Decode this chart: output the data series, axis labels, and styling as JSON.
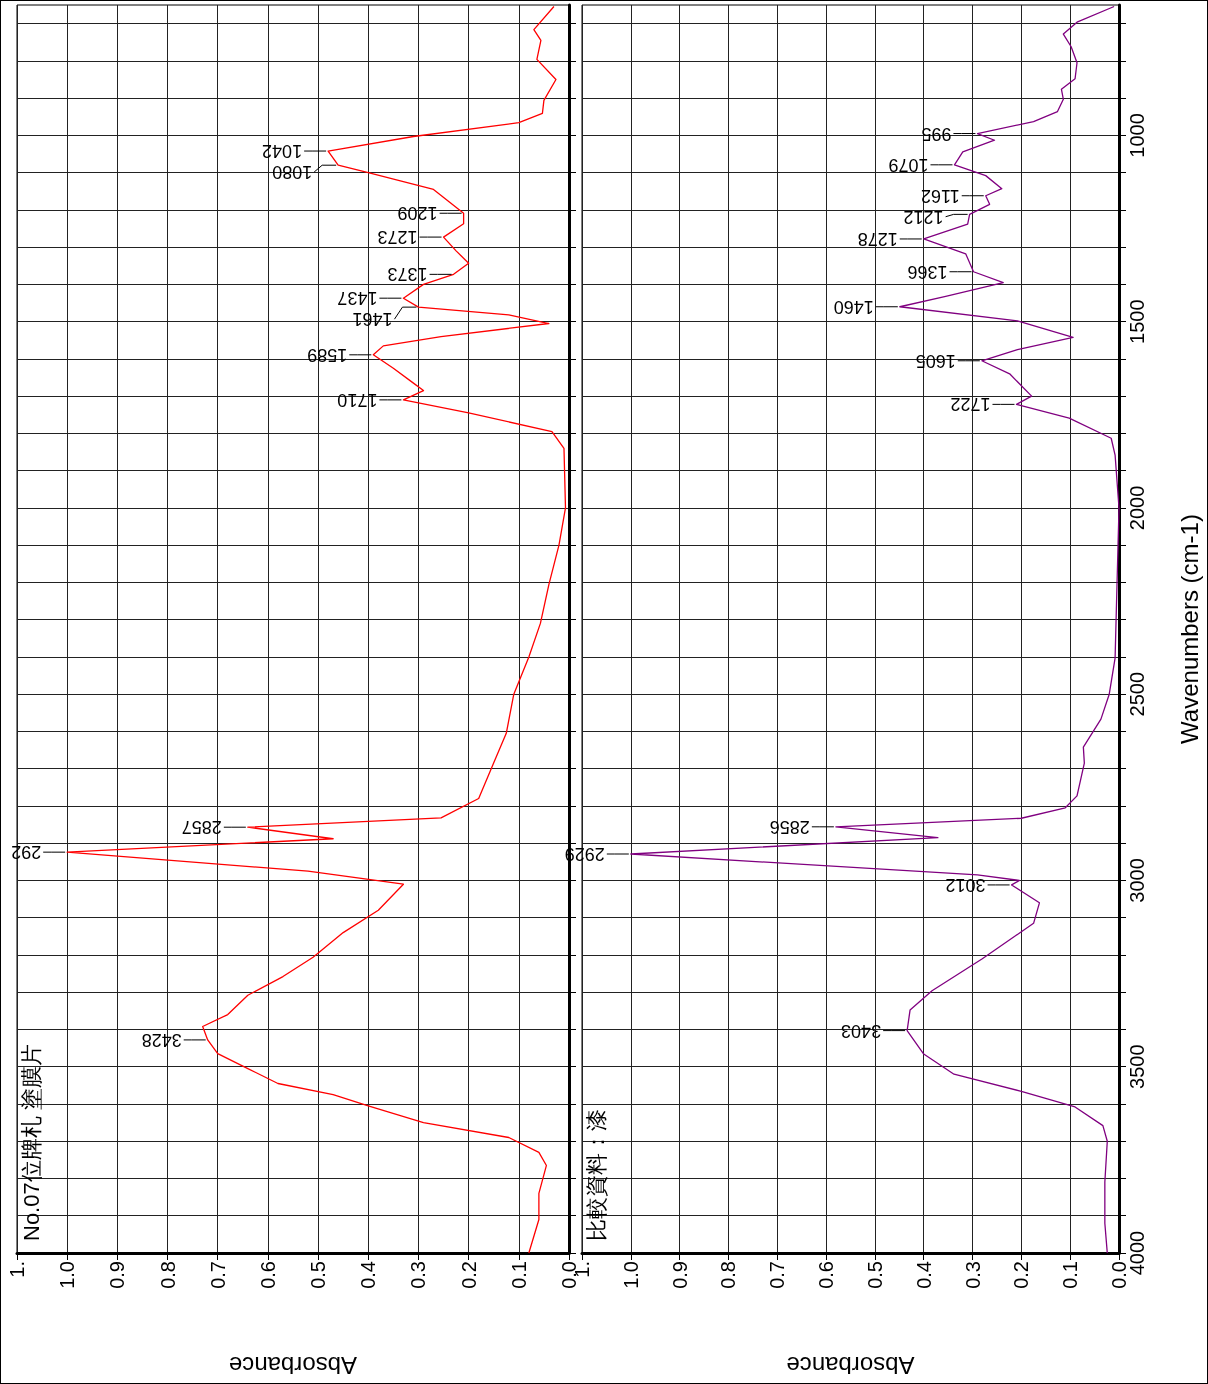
{
  "chart_data": [
    {
      "type": "line",
      "title": "No.07位牌札 塗膜片",
      "xlabel": "Absorbance",
      "xlim": [
        1.1,
        0
      ],
      "xticks": [
        {
          "value": 1.1,
          "label": "1."
        },
        {
          "value": 1,
          "label": "1.0"
        },
        0.9,
        0.8,
        0.7,
        0.6,
        0.5,
        0.4,
        0.3,
        0.2,
        0.1,
        {
          "value": 0,
          "label": "0.0"
        }
      ],
      "ylim": [
        4000,
        650
      ],
      "yticks": [
        {
          "value": 700,
          "label": null
        },
        {
          "value": 800,
          "label": null
        },
        {
          "value": 900,
          "label": null
        },
        {
          "value": 1000,
          "label": null
        },
        {
          "value": 1100,
          "label": null
        },
        {
          "value": 1200,
          "label": null
        },
        {
          "value": 1300,
          "label": null
        },
        {
          "value": 1400,
          "label": null
        },
        {
          "value": 1500,
          "label": null
        },
        {
          "value": 1600,
          "label": null
        },
        {
          "value": 1700,
          "label": null
        },
        {
          "value": 1800,
          "label": null
        },
        {
          "value": 1900,
          "label": null
        },
        {
          "value": 2000,
          "label": null
        },
        {
          "value": 2100,
          "label": null
        },
        {
          "value": 2200,
          "label": null
        },
        {
          "value": 2300,
          "label": null
        },
        {
          "value": 2400,
          "label": null
        },
        {
          "value": 2500,
          "label": null
        },
        {
          "value": 2600,
          "label": null
        },
        {
          "value": 2700,
          "label": null
        },
        {
          "value": 2800,
          "label": null
        },
        {
          "value": 2900,
          "label": null
        },
        {
          "value": 3000,
          "label": null
        },
        {
          "value": 3100,
          "label": null
        },
        {
          "value": 3200,
          "label": null
        },
        {
          "value": 3300,
          "label": null
        },
        {
          "value": 3400,
          "label": null
        },
        {
          "value": 3500,
          "label": null
        },
        {
          "value": 3600,
          "label": null
        },
        {
          "value": 3700,
          "label": null
        },
        {
          "value": 3800,
          "label": null
        },
        {
          "value": 3900,
          "label": null
        },
        {
          "value": 4000,
          "label": null
        }
      ],
      "tick_labels": "x",
      "grid": true,
      "series": [
        {
          "color": "#ff0000",
          "x": [
            0.08,
            0.06,
            0.06,
            0.045,
            0.06,
            0.12,
            0.29,
            0.4,
            0.47,
            0.58,
            0.64,
            0.7,
            0.72,
            0.73,
            0.68,
            0.64,
            0.57,
            0.51,
            0.45,
            0.38,
            0.33,
            0.52,
            1.0,
            0.47,
            0.64,
            0.255,
            0.18,
            0.155,
            0.125,
            0.11,
            0.08,
            0.057,
            0.04,
            0.02,
            0.007,
            0.01,
            0.034,
            0.2,
            0.33,
            0.29,
            0.31,
            0.35,
            0.39,
            0.37,
            0.255,
            0.04,
            0.12,
            0.3,
            0.33,
            0.29,
            0.23,
            0.2,
            0.225,
            0.25,
            0.21,
            0.21,
            0.27,
            0.4,
            0.46,
            0.48,
            0.31,
            0.1,
            0.053,
            0.05,
            0.026,
            0.064,
            0.056,
            0.07,
            0.03
          ],
          "values": [
            4000,
            3910,
            3840,
            3765,
            3730,
            3690,
            3650,
            3605,
            3575,
            3545,
            3505,
            3465,
            3428,
            3392,
            3360,
            3308,
            3258,
            3206,
            3140,
            3080,
            3010,
            2975,
            2924,
            2888,
            2857,
            2832,
            2780,
            2700,
            2605,
            2500,
            2400,
            2310,
            2205,
            2100,
            2000,
            1840,
            1795,
            1745,
            1710,
            1685,
            1665,
            1625,
            1589,
            1565,
            1540,
            1505,
            1482,
            1461,
            1437,
            1400,
            1373,
            1343,
            1310,
            1273,
            1237,
            1209,
            1145,
            1100,
            1080,
            1042,
            1003,
            966,
            941,
            906,
            850,
            796,
            745,
            716,
            654
          ]
        }
      ],
      "annotations": [
        {
          "text": "3428",
          "x": 0.72,
          "y": 3428
        },
        {
          "text": "292",
          "x": 1.0,
          "y": 2924
        },
        {
          "text": "2857",
          "x": 0.64,
          "y": 2857
        },
        {
          "text": "1710",
          "x": 0.33,
          "y": 1710
        },
        {
          "text": "1589",
          "x": 0.39,
          "y": 1589
        },
        {
          "text": "1461",
          "x": 0.3,
          "y": 1461
        },
        {
          "text": "1437",
          "x": 0.33,
          "y": 1437
        },
        {
          "text": "1373",
          "x": 0.23,
          "y": 1373
        },
        {
          "text": "1273",
          "x": 0.25,
          "y": 1273
        },
        {
          "text": "1209",
          "x": 0.21,
          "y": 1209
        },
        {
          "text": "1080",
          "x": 0.46,
          "y": 1080
        },
        {
          "text": "1042",
          "x": 0.48,
          "y": 1042
        }
      ]
    },
    {
      "type": "line",
      "title": "比較資料：漆",
      "xlabel": "Absorbance",
      "ylabel": "Wavenumbers (cm-1)",
      "xlim": [
        1.1,
        0
      ],
      "xticks": [
        {
          "value": 1.1,
          "label": "1."
        },
        {
          "value": 1,
          "label": "1.0"
        },
        0.9,
        0.8,
        0.7,
        0.6,
        0.5,
        0.4,
        0.3,
        0.2,
        0.1,
        {
          "value": 0,
          "label": "0.0"
        }
      ],
      "ylim": [
        4000,
        650
      ],
      "yticks": [
        {
          "value": 700,
          "label": null
        },
        {
          "value": 800,
          "label": null
        },
        {
          "value": 900,
          "label": null
        },
        {
          "value": 1000,
          "label": "1000"
        },
        {
          "value": 1100,
          "label": null
        },
        {
          "value": 1200,
          "label": null
        },
        {
          "value": 1300,
          "label": null
        },
        {
          "value": 1400,
          "label": null
        },
        {
          "value": 1500,
          "label": "1500"
        },
        {
          "value": 1600,
          "label": null
        },
        {
          "value": 1700,
          "label": null
        },
        {
          "value": 1800,
          "label": null
        },
        {
          "value": 1900,
          "label": null
        },
        {
          "value": 2000,
          "label": "2000"
        },
        {
          "value": 2100,
          "label": null
        },
        {
          "value": 2200,
          "label": null
        },
        {
          "value": 2300,
          "label": null
        },
        {
          "value": 2400,
          "label": null
        },
        {
          "value": 2500,
          "label": "2500"
        },
        {
          "value": 2600,
          "label": null
        },
        {
          "value": 2700,
          "label": null
        },
        {
          "value": 2800,
          "label": null
        },
        {
          "value": 2900,
          "label": null
        },
        {
          "value": 3000,
          "label": "3000"
        },
        {
          "value": 3100,
          "label": null
        },
        {
          "value": 3200,
          "label": null
        },
        {
          "value": 3300,
          "label": null
        },
        {
          "value": 3400,
          "label": null
        },
        {
          "value": 3500,
          "label": "3500"
        },
        {
          "value": 3600,
          "label": null
        },
        {
          "value": 3700,
          "label": null
        },
        {
          "value": 3800,
          "label": null
        },
        {
          "value": 3900,
          "label": null
        },
        {
          "value": 4000,
          "label": "4000"
        }
      ],
      "grid": true,
      "series": [
        {
          "color": "#800080",
          "x": [
            0.024,
            0.029,
            0.029,
            0.024,
            0.033,
            0.09,
            0.2,
            0.338,
            0.4,
            0.434,
            0.428,
            0.383,
            0.28,
            0.175,
            0.163,
            0.22,
            0.204,
            0.29,
            1.0,
            0.371,
            0.58,
            0.2,
            0.11,
            0.086,
            0.071,
            0.073,
            0.037,
            0.02,
            0.008,
            0.0,
            0.008,
            0.016,
            0.102,
            0.21,
            0.179,
            0.224,
            0.281,
            0.208,
            0.094,
            0.208,
            0.449,
            0.355,
            0.237,
            0.298,
            0.314,
            0.4,
            0.31,
            0.306,
            0.265,
            0.273,
            0.24,
            0.273,
            0.337,
            0.32,
            0.255,
            0.29,
            0.175,
            0.126,
            0.114,
            0.118,
            0.09,
            0.086,
            0.098,
            0.114,
            0.086,
            0.01
          ],
          "values": [
            4000,
            3920,
            3810,
            3700,
            3658,
            3608,
            3566,
            3520,
            3466,
            3403,
            3348,
            3296,
            3210,
            3115,
            3060,
            3012,
            3000,
            2985,
            2929,
            2885,
            2856,
            2833,
            2805,
            2773,
            2685,
            2642,
            2567,
            2500,
            2403,
            2000,
            1858,
            1813,
            1759,
            1722,
            1700,
            1640,
            1605,
            1575,
            1542,
            1498,
            1460,
            1432,
            1395,
            1366,
            1318,
            1278,
            1238,
            1212,
            1185,
            1162,
            1143,
            1108,
            1079,
            1044,
            1013,
            995,
            963,
            936,
            903,
            876,
            848,
            805,
            762,
            728,
            696,
            654
          ]
        }
      ],
      "annotations": [
        {
          "text": "3403",
          "x": 0.434,
          "y": 3403
        },
        {
          "text": "3012",
          "x": 0.22,
          "y": 3012
        },
        {
          "text": "2929",
          "x": 1.0,
          "y": 2929
        },
        {
          "text": "2856",
          "x": 0.58,
          "y": 2856
        },
        {
          "text": "1722",
          "x": 0.21,
          "y": 1722
        },
        {
          "text": "1605",
          "x": 0.281,
          "y": 1605
        },
        {
          "text": "1460",
          "x": 0.449,
          "y": 1460
        },
        {
          "text": "1366",
          "x": 0.298,
          "y": 1366
        },
        {
          "text": "1278",
          "x": 0.4,
          "y": 1278
        },
        {
          "text": "1212",
          "x": 0.306,
          "y": 1212
        },
        {
          "text": "1162",
          "x": 0.273,
          "y": 1162
        },
        {
          "text": "1079",
          "x": 0.337,
          "y": 1079
        },
        {
          "text": "995",
          "x": 0.29,
          "y": 995
        }
      ]
    }
  ]
}
